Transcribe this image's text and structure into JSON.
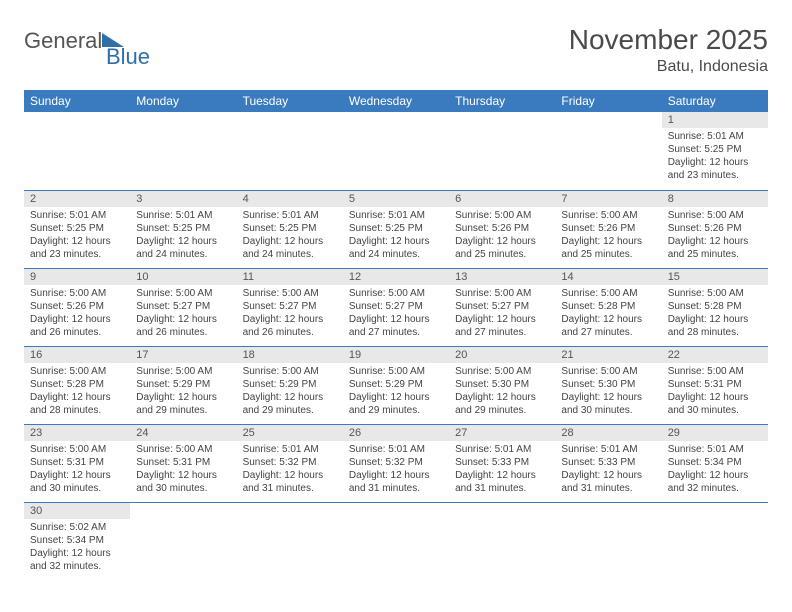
{
  "logo": {
    "part1": "General",
    "part2": "Blue"
  },
  "title": "November 2025",
  "location": "Batu, Indonesia",
  "colors": {
    "header_bg": "#3a7bbf",
    "header_fg": "#ffffff",
    "daynum_bg": "#e8e8e8",
    "cell_border": "#3a7bbf",
    "text": "#444444",
    "title": "#4a4a4a"
  },
  "weekdays": [
    "Sunday",
    "Monday",
    "Tuesday",
    "Wednesday",
    "Thursday",
    "Friday",
    "Saturday"
  ],
  "weeks": [
    [
      null,
      null,
      null,
      null,
      null,
      null,
      {
        "n": "1",
        "sr": "Sunrise: 5:01 AM",
        "ss": "Sunset: 5:25 PM",
        "dl": "Daylight: 12 hours and 23 minutes."
      }
    ],
    [
      {
        "n": "2",
        "sr": "Sunrise: 5:01 AM",
        "ss": "Sunset: 5:25 PM",
        "dl": "Daylight: 12 hours and 23 minutes."
      },
      {
        "n": "3",
        "sr": "Sunrise: 5:01 AM",
        "ss": "Sunset: 5:25 PM",
        "dl": "Daylight: 12 hours and 24 minutes."
      },
      {
        "n": "4",
        "sr": "Sunrise: 5:01 AM",
        "ss": "Sunset: 5:25 PM",
        "dl": "Daylight: 12 hours and 24 minutes."
      },
      {
        "n": "5",
        "sr": "Sunrise: 5:01 AM",
        "ss": "Sunset: 5:25 PM",
        "dl": "Daylight: 12 hours and 24 minutes."
      },
      {
        "n": "6",
        "sr": "Sunrise: 5:00 AM",
        "ss": "Sunset: 5:26 PM",
        "dl": "Daylight: 12 hours and 25 minutes."
      },
      {
        "n": "7",
        "sr": "Sunrise: 5:00 AM",
        "ss": "Sunset: 5:26 PM",
        "dl": "Daylight: 12 hours and 25 minutes."
      },
      {
        "n": "8",
        "sr": "Sunrise: 5:00 AM",
        "ss": "Sunset: 5:26 PM",
        "dl": "Daylight: 12 hours and 25 minutes."
      }
    ],
    [
      {
        "n": "9",
        "sr": "Sunrise: 5:00 AM",
        "ss": "Sunset: 5:26 PM",
        "dl": "Daylight: 12 hours and 26 minutes."
      },
      {
        "n": "10",
        "sr": "Sunrise: 5:00 AM",
        "ss": "Sunset: 5:27 PM",
        "dl": "Daylight: 12 hours and 26 minutes."
      },
      {
        "n": "11",
        "sr": "Sunrise: 5:00 AM",
        "ss": "Sunset: 5:27 PM",
        "dl": "Daylight: 12 hours and 26 minutes."
      },
      {
        "n": "12",
        "sr": "Sunrise: 5:00 AM",
        "ss": "Sunset: 5:27 PM",
        "dl": "Daylight: 12 hours and 27 minutes."
      },
      {
        "n": "13",
        "sr": "Sunrise: 5:00 AM",
        "ss": "Sunset: 5:27 PM",
        "dl": "Daylight: 12 hours and 27 minutes."
      },
      {
        "n": "14",
        "sr": "Sunrise: 5:00 AM",
        "ss": "Sunset: 5:28 PM",
        "dl": "Daylight: 12 hours and 27 minutes."
      },
      {
        "n": "15",
        "sr": "Sunrise: 5:00 AM",
        "ss": "Sunset: 5:28 PM",
        "dl": "Daylight: 12 hours and 28 minutes."
      }
    ],
    [
      {
        "n": "16",
        "sr": "Sunrise: 5:00 AM",
        "ss": "Sunset: 5:28 PM",
        "dl": "Daylight: 12 hours and 28 minutes."
      },
      {
        "n": "17",
        "sr": "Sunrise: 5:00 AM",
        "ss": "Sunset: 5:29 PM",
        "dl": "Daylight: 12 hours and 29 minutes."
      },
      {
        "n": "18",
        "sr": "Sunrise: 5:00 AM",
        "ss": "Sunset: 5:29 PM",
        "dl": "Daylight: 12 hours and 29 minutes."
      },
      {
        "n": "19",
        "sr": "Sunrise: 5:00 AM",
        "ss": "Sunset: 5:29 PM",
        "dl": "Daylight: 12 hours and 29 minutes."
      },
      {
        "n": "20",
        "sr": "Sunrise: 5:00 AM",
        "ss": "Sunset: 5:30 PM",
        "dl": "Daylight: 12 hours and 29 minutes."
      },
      {
        "n": "21",
        "sr": "Sunrise: 5:00 AM",
        "ss": "Sunset: 5:30 PM",
        "dl": "Daylight: 12 hours and 30 minutes."
      },
      {
        "n": "22",
        "sr": "Sunrise: 5:00 AM",
        "ss": "Sunset: 5:31 PM",
        "dl": "Daylight: 12 hours and 30 minutes."
      }
    ],
    [
      {
        "n": "23",
        "sr": "Sunrise: 5:00 AM",
        "ss": "Sunset: 5:31 PM",
        "dl": "Daylight: 12 hours and 30 minutes."
      },
      {
        "n": "24",
        "sr": "Sunrise: 5:00 AM",
        "ss": "Sunset: 5:31 PM",
        "dl": "Daylight: 12 hours and 30 minutes."
      },
      {
        "n": "25",
        "sr": "Sunrise: 5:01 AM",
        "ss": "Sunset: 5:32 PM",
        "dl": "Daylight: 12 hours and 31 minutes."
      },
      {
        "n": "26",
        "sr": "Sunrise: 5:01 AM",
        "ss": "Sunset: 5:32 PM",
        "dl": "Daylight: 12 hours and 31 minutes."
      },
      {
        "n": "27",
        "sr": "Sunrise: 5:01 AM",
        "ss": "Sunset: 5:33 PM",
        "dl": "Daylight: 12 hours and 31 minutes."
      },
      {
        "n": "28",
        "sr": "Sunrise: 5:01 AM",
        "ss": "Sunset: 5:33 PM",
        "dl": "Daylight: 12 hours and 31 minutes."
      },
      {
        "n": "29",
        "sr": "Sunrise: 5:01 AM",
        "ss": "Sunset: 5:34 PM",
        "dl": "Daylight: 12 hours and 32 minutes."
      }
    ],
    [
      {
        "n": "30",
        "sr": "Sunrise: 5:02 AM",
        "ss": "Sunset: 5:34 PM",
        "dl": "Daylight: 12 hours and 32 minutes."
      },
      null,
      null,
      null,
      null,
      null,
      null
    ]
  ]
}
